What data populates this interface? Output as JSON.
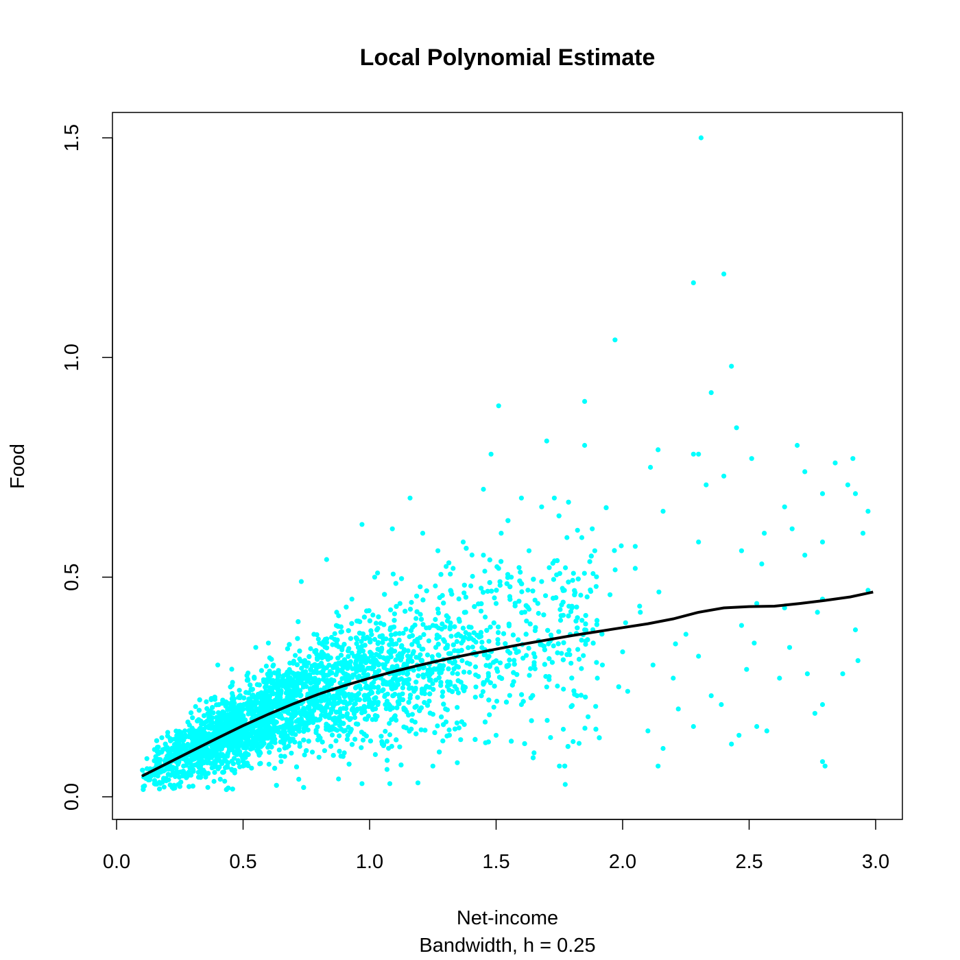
{
  "chart_data": {
    "type": "scatter",
    "title": "Local Polynomial Estimate",
    "xlabel": "Net-income",
    "xlabel_sub": "Bandwidth, h =  0.25",
    "ylabel": "Food",
    "xlim": [
      0.0,
      3.0
    ],
    "ylim": [
      0.0,
      1.5
    ],
    "xticks": [
      "0.0",
      "0.5",
      "1.0",
      "1.5",
      "2.0",
      "2.5",
      "3.0"
    ],
    "yticks": [
      "0.0",
      "0.5",
      "1.0",
      "1.5"
    ],
    "colors": {
      "points": "#00ffff",
      "curve": "#000000"
    },
    "series": [
      {
        "type": "scatter",
        "points": [
          [
            2.31,
            1.5
          ],
          [
            2.4,
            1.19
          ],
          [
            2.28,
            1.17
          ],
          [
            1.97,
            1.04
          ],
          [
            2.43,
            0.98
          ],
          [
            2.35,
            0.92
          ],
          [
            1.85,
            0.9
          ],
          [
            1.51,
            0.89
          ],
          [
            2.45,
            0.84
          ],
          [
            1.7,
            0.81
          ],
          [
            1.85,
            0.8
          ],
          [
            2.69,
            0.8
          ],
          [
            2.14,
            0.79
          ],
          [
            2.3,
            0.78
          ],
          [
            2.28,
            0.78
          ],
          [
            1.48,
            0.78
          ],
          [
            2.51,
            0.77
          ],
          [
            2.91,
            0.77
          ],
          [
            2.84,
            0.76
          ],
          [
            2.11,
            0.75
          ],
          [
            2.72,
            0.74
          ],
          [
            2.4,
            0.73
          ],
          [
            2.89,
            0.71
          ],
          [
            1.45,
            0.7
          ],
          [
            2.33,
            0.71
          ],
          [
            2.79,
            0.69
          ],
          [
            2.92,
            0.69
          ],
          [
            1.6,
            0.68
          ],
          [
            1.16,
            0.68
          ],
          [
            2.97,
            0.65
          ],
          [
            2.67,
            0.61
          ],
          [
            1.68,
            0.66
          ],
          [
            2.56,
            0.6
          ],
          [
            2.95,
            0.6
          ],
          [
            0.97,
            0.62
          ],
          [
            1.09,
            0.61
          ],
          [
            1.21,
            0.6
          ],
          [
            1.52,
            0.6
          ],
          [
            2.16,
            0.65
          ],
          [
            2.64,
            0.66
          ],
          [
            1.89,
            0.56
          ],
          [
            2.05,
            0.57
          ],
          [
            2.3,
            0.58
          ],
          [
            2.47,
            0.56
          ],
          [
            2.79,
            0.58
          ],
          [
            1.51,
            0.52
          ],
          [
            0.83,
            0.54
          ],
          [
            2.55,
            0.53
          ],
          [
            2.72,
            0.55
          ],
          [
            2.79,
            0.45
          ],
          [
            2.97,
            0.47
          ],
          [
            2.53,
            0.44
          ],
          [
            2.64,
            0.43
          ],
          [
            2.77,
            0.42
          ],
          [
            2.92,
            0.38
          ],
          [
            2.47,
            0.39
          ],
          [
            2.52,
            0.35
          ],
          [
            2.66,
            0.34
          ],
          [
            2.73,
            0.28
          ],
          [
            2.87,
            0.28
          ],
          [
            2.93,
            0.31
          ],
          [
            2.49,
            0.29
          ],
          [
            2.62,
            0.27
          ],
          [
            2.76,
            0.19
          ],
          [
            2.79,
            0.21
          ],
          [
            2.57,
            0.15
          ],
          [
            2.53,
            0.16
          ],
          [
            2.46,
            0.14
          ],
          [
            2.43,
            0.12
          ],
          [
            2.79,
            0.08
          ],
          [
            2.8,
            0.07
          ],
          [
            2.14,
            0.07
          ],
          [
            2.16,
            0.11
          ],
          [
            2.1,
            0.15
          ],
          [
            2.28,
            0.16
          ],
          [
            2.39,
            0.21
          ],
          [
            2.35,
            0.23
          ],
          [
            2.2,
            0.27
          ],
          [
            2.22,
            0.2
          ],
          [
            1.75,
            0.07
          ],
          [
            1.65,
            0.1
          ],
          [
            1.5,
            0.14
          ],
          [
            1.36,
            0.13
          ],
          [
            1.25,
            0.07
          ],
          [
            1.08,
            0.03
          ],
          [
            0.97,
            0.03
          ],
          [
            0.72,
            0.04
          ],
          [
            0.41,
            0.04
          ],
          [
            0.23,
            0.02
          ],
          [
            0.15,
            0.03
          ],
          [
            0.18,
            0.07
          ],
          [
            0.11,
            0.05
          ],
          [
            0.27,
            0.15
          ],
          [
            0.55,
            0.34
          ],
          [
            0.6,
            0.35
          ],
          [
            0.4,
            0.3
          ],
          [
            0.73,
            0.49
          ],
          [
            0.87,
            0.42
          ],
          [
            0.93,
            0.45
          ],
          [
            1.02,
            0.5
          ],
          [
            1.12,
            0.44
          ],
          [
            1.26,
            0.48
          ],
          [
            1.33,
            0.52
          ],
          [
            1.4,
            0.48
          ],
          [
            1.56,
            0.5
          ],
          [
            1.68,
            0.49
          ],
          [
            1.77,
            0.47
          ],
          [
            1.8,
            0.43
          ],
          [
            1.95,
            0.46
          ],
          [
            2.07,
            0.42
          ],
          [
            2.0,
            0.33
          ],
          [
            1.9,
            0.27
          ],
          [
            1.82,
            0.23
          ],
          [
            1.7,
            0.25
          ],
          [
            1.6,
            0.21
          ],
          [
            1.55,
            0.3
          ],
          [
            1.42,
            0.25
          ],
          [
            1.3,
            0.2
          ],
          [
            1.18,
            0.17
          ],
          [
            1.05,
            0.12
          ],
          [
            0.9,
            0.1
          ],
          [
            0.8,
            0.09
          ],
          [
            0.65,
            0.08
          ],
          [
            0.5,
            0.07
          ],
          [
            0.35,
            0.08
          ],
          [
            0.3,
            0.18
          ],
          [
            0.45,
            0.25
          ],
          [
            0.62,
            0.3
          ],
          [
            0.78,
            0.37
          ],
          [
            0.95,
            0.4
          ],
          [
            1.1,
            0.37
          ],
          [
            1.25,
            0.39
          ],
          [
            1.38,
            0.42
          ],
          [
            1.5,
            0.44
          ],
          [
            1.62,
            0.4
          ],
          [
            1.72,
            0.36
          ],
          [
            1.85,
            0.38
          ],
          [
            1.92,
            0.3
          ],
          [
            2.02,
            0.24
          ],
          [
            2.12,
            0.3
          ],
          [
            2.25,
            0.37
          ],
          [
            2.3,
            0.32
          ],
          [
            2.05,
            0.52
          ],
          [
            1.78,
            0.59
          ],
          [
            1.88,
            0.61
          ],
          [
            1.73,
            0.68
          ],
          [
            1.37,
            0.58
          ],
          [
            1.27,
            0.56
          ],
          [
            1.45,
            0.55
          ],
          [
            1.63,
            0.56
          ]
        ]
      },
      {
        "type": "line",
        "name": "",
        "x": [
          0.1,
          0.2,
          0.3,
          0.4,
          0.5,
          0.6,
          0.7,
          0.8,
          0.9,
          1.0,
          1.1,
          1.2,
          1.3,
          1.4,
          1.5,
          1.6,
          1.7,
          1.8,
          1.9,
          2.0,
          2.1,
          2.2,
          2.3,
          2.4,
          2.5,
          2.6,
          2.7,
          2.8,
          2.9,
          2.99
        ],
        "y": [
          0.047,
          0.076,
          0.105,
          0.134,
          0.162,
          0.188,
          0.212,
          0.234,
          0.253,
          0.27,
          0.286,
          0.3,
          0.313,
          0.325,
          0.336,
          0.347,
          0.357,
          0.367,
          0.376,
          0.385,
          0.394,
          0.405,
          0.42,
          0.43,
          0.433,
          0.434,
          0.44,
          0.447,
          0.455,
          0.466
        ]
      }
    ]
  }
}
